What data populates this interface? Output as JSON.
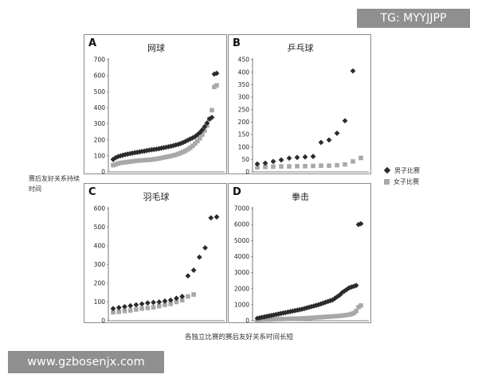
{
  "watermarks": {
    "top_right": "TG: MYYJJPP",
    "bottom_left": "www.gzbosenjx.com"
  },
  "figure": {
    "ylabel": "赛后友好关系持续时间",
    "xlabel": "各独立比赛的赛后友好关系时间长短"
  },
  "legend": [
    {
      "label": "男子比赛",
      "marker": "diamond",
      "color": "#2b2b2b"
    },
    {
      "label": "女子比赛",
      "marker": "square",
      "color": "#a8a8a8"
    }
  ],
  "chart_data": [
    {
      "type": "scatter",
      "letter": "A",
      "title": "网球",
      "ylim": [
        0,
        700
      ],
      "yticks": [
        0,
        100,
        200,
        300,
        400,
        500,
        600,
        700
      ],
      "series": [
        {
          "name": "男子比赛",
          "marker": "diamond",
          "color": "#2b2b2b",
          "x": [
            1,
            2,
            3,
            4,
            5,
            6,
            7,
            8,
            9,
            10,
            11,
            12,
            13,
            14,
            15,
            16,
            17,
            18,
            19,
            20,
            21,
            22,
            23,
            24,
            25,
            26,
            27,
            28,
            29,
            30,
            31,
            32,
            33,
            34,
            35,
            36,
            37,
            38,
            39,
            40,
            41,
            42,
            43,
            44
          ],
          "values": [
            78,
            88,
            95,
            100,
            104,
            108,
            111,
            114,
            117,
            120,
            122,
            125,
            128,
            130,
            133,
            136,
            138,
            140,
            142,
            145,
            148,
            151,
            154,
            157,
            160,
            164,
            168,
            172,
            177,
            183,
            190,
            198,
            205,
            212,
            220,
            232,
            245,
            262,
            282,
            305,
            330,
            340,
            610,
            615
          ]
        },
        {
          "name": "女子比赛",
          "marker": "square",
          "color": "#a8a8a8",
          "x": [
            1,
            2,
            3,
            4,
            5,
            6,
            7,
            8,
            9,
            10,
            11,
            12,
            13,
            14,
            15,
            16,
            17,
            18,
            19,
            20,
            21,
            22,
            23,
            24,
            25,
            26,
            27,
            28,
            29,
            30,
            31,
            32,
            33,
            34,
            35,
            36,
            37,
            38,
            39,
            40,
            41,
            42,
            43,
            44
          ],
          "values": [
            42,
            47,
            52,
            56,
            58,
            60,
            62,
            64,
            66,
            68,
            70,
            71,
            72,
            73,
            74,
            75,
            77,
            79,
            81,
            84,
            87,
            90,
            93,
            96,
            99,
            103,
            107,
            112,
            118,
            124,
            131,
            140,
            150,
            162,
            176,
            192,
            210,
            232,
            258,
            290,
            330,
            385,
            530,
            540
          ]
        }
      ]
    },
    {
      "type": "scatter",
      "letter": "B",
      "title": "乒乓球",
      "ylim": [
        0,
        450
      ],
      "yticks": [
        0,
        50,
        100,
        150,
        200,
        250,
        300,
        350,
        400,
        450
      ],
      "series": [
        {
          "name": "男子比赛",
          "marker": "diamond",
          "color": "#2b2b2b",
          "x": [
            1,
            2,
            3,
            4,
            5,
            6,
            7,
            8,
            9,
            10,
            11,
            12,
            13
          ],
          "values": [
            32,
            35,
            42,
            48,
            55,
            58,
            60,
            62,
            118,
            128,
            155,
            205,
            405
          ]
        },
        {
          "name": "女子比赛",
          "marker": "square",
          "color": "#a8a8a8",
          "x": [
            1,
            2,
            3,
            4,
            5,
            6,
            7,
            8,
            9,
            10,
            11,
            12,
            13,
            14
          ],
          "values": [
            18,
            20,
            21,
            22,
            22,
            23,
            23,
            24,
            25,
            25,
            27,
            30,
            42,
            56
          ]
        }
      ]
    },
    {
      "type": "scatter",
      "letter": "C",
      "title": "羽毛球",
      "ylim": [
        0,
        600
      ],
      "yticks": [
        0,
        100,
        200,
        300,
        400,
        500,
        600
      ],
      "series": [
        {
          "name": "男子比赛",
          "marker": "diamond",
          "color": "#2b2b2b",
          "x": [
            1,
            2,
            3,
            4,
            5,
            6,
            7,
            8,
            9,
            10,
            11,
            12,
            13,
            14,
            15,
            16,
            17,
            18,
            19
          ],
          "values": [
            65,
            70,
            75,
            80,
            85,
            90,
            95,
            98,
            100,
            105,
            110,
            120,
            130,
            240,
            270,
            340,
            390,
            550,
            555
          ]
        },
        {
          "name": "女子比赛",
          "marker": "square",
          "color": "#a8a8a8",
          "x": [
            1,
            2,
            3,
            4,
            5,
            6,
            7,
            8,
            9,
            10,
            11,
            12,
            13,
            14,
            15
          ],
          "values": [
            45,
            48,
            52,
            55,
            60,
            65,
            68,
            72,
            78,
            85,
            90,
            100,
            110,
            130,
            140
          ]
        }
      ]
    },
    {
      "type": "scatter",
      "letter": "D",
      "title": "拳击",
      "ylim": [
        0,
        7000
      ],
      "yticks": [
        0,
        1000,
        2000,
        3000,
        4000,
        5000,
        6000,
        7000
      ],
      "series": [
        {
          "name": "男子比赛",
          "marker": "diamond",
          "color": "#2b2b2b",
          "x": [
            1,
            2,
            3,
            4,
            5,
            6,
            7,
            8,
            9,
            10,
            11,
            12,
            13,
            14,
            15,
            16,
            17,
            18,
            19,
            20,
            21,
            22,
            23,
            24,
            25,
            26,
            27,
            28,
            29,
            30,
            31,
            32,
            33,
            34,
            35,
            36,
            37,
            38,
            39,
            40,
            41,
            42,
            43,
            44,
            45
          ],
          "values": [
            150,
            180,
            210,
            240,
            270,
            300,
            330,
            360,
            390,
            420,
            450,
            480,
            510,
            540,
            570,
            600,
            630,
            660,
            690,
            720,
            760,
            800,
            840,
            880,
            920,
            960,
            1000,
            1050,
            1100,
            1150,
            1200,
            1250,
            1300,
            1400,
            1500,
            1600,
            1750,
            1850,
            1950,
            2050,
            2100,
            2150,
            2200,
            6000,
            6050
          ]
        },
        {
          "name": "女子比赛",
          "marker": "square",
          "color": "#a8a8a8",
          "x": [
            1,
            2,
            3,
            4,
            5,
            6,
            7,
            8,
            9,
            10,
            11,
            12,
            13,
            14,
            15,
            16,
            17,
            18,
            19,
            20,
            21,
            22,
            23,
            24,
            25,
            26,
            27,
            28,
            29,
            30,
            31,
            32,
            33,
            34,
            35,
            36,
            37,
            38,
            39,
            40,
            41,
            42,
            43,
            44,
            45
          ],
          "values": [
            50,
            55,
            60,
            65,
            70,
            75,
            80,
            85,
            90,
            95,
            100,
            105,
            110,
            115,
            120,
            125,
            130,
            135,
            140,
            145,
            150,
            160,
            170,
            180,
            190,
            200,
            210,
            220,
            230,
            240,
            250,
            260,
            270,
            280,
            290,
            300,
            320,
            340,
            360,
            380,
            420,
            480,
            600,
            850,
            950
          ]
        }
      ]
    }
  ]
}
